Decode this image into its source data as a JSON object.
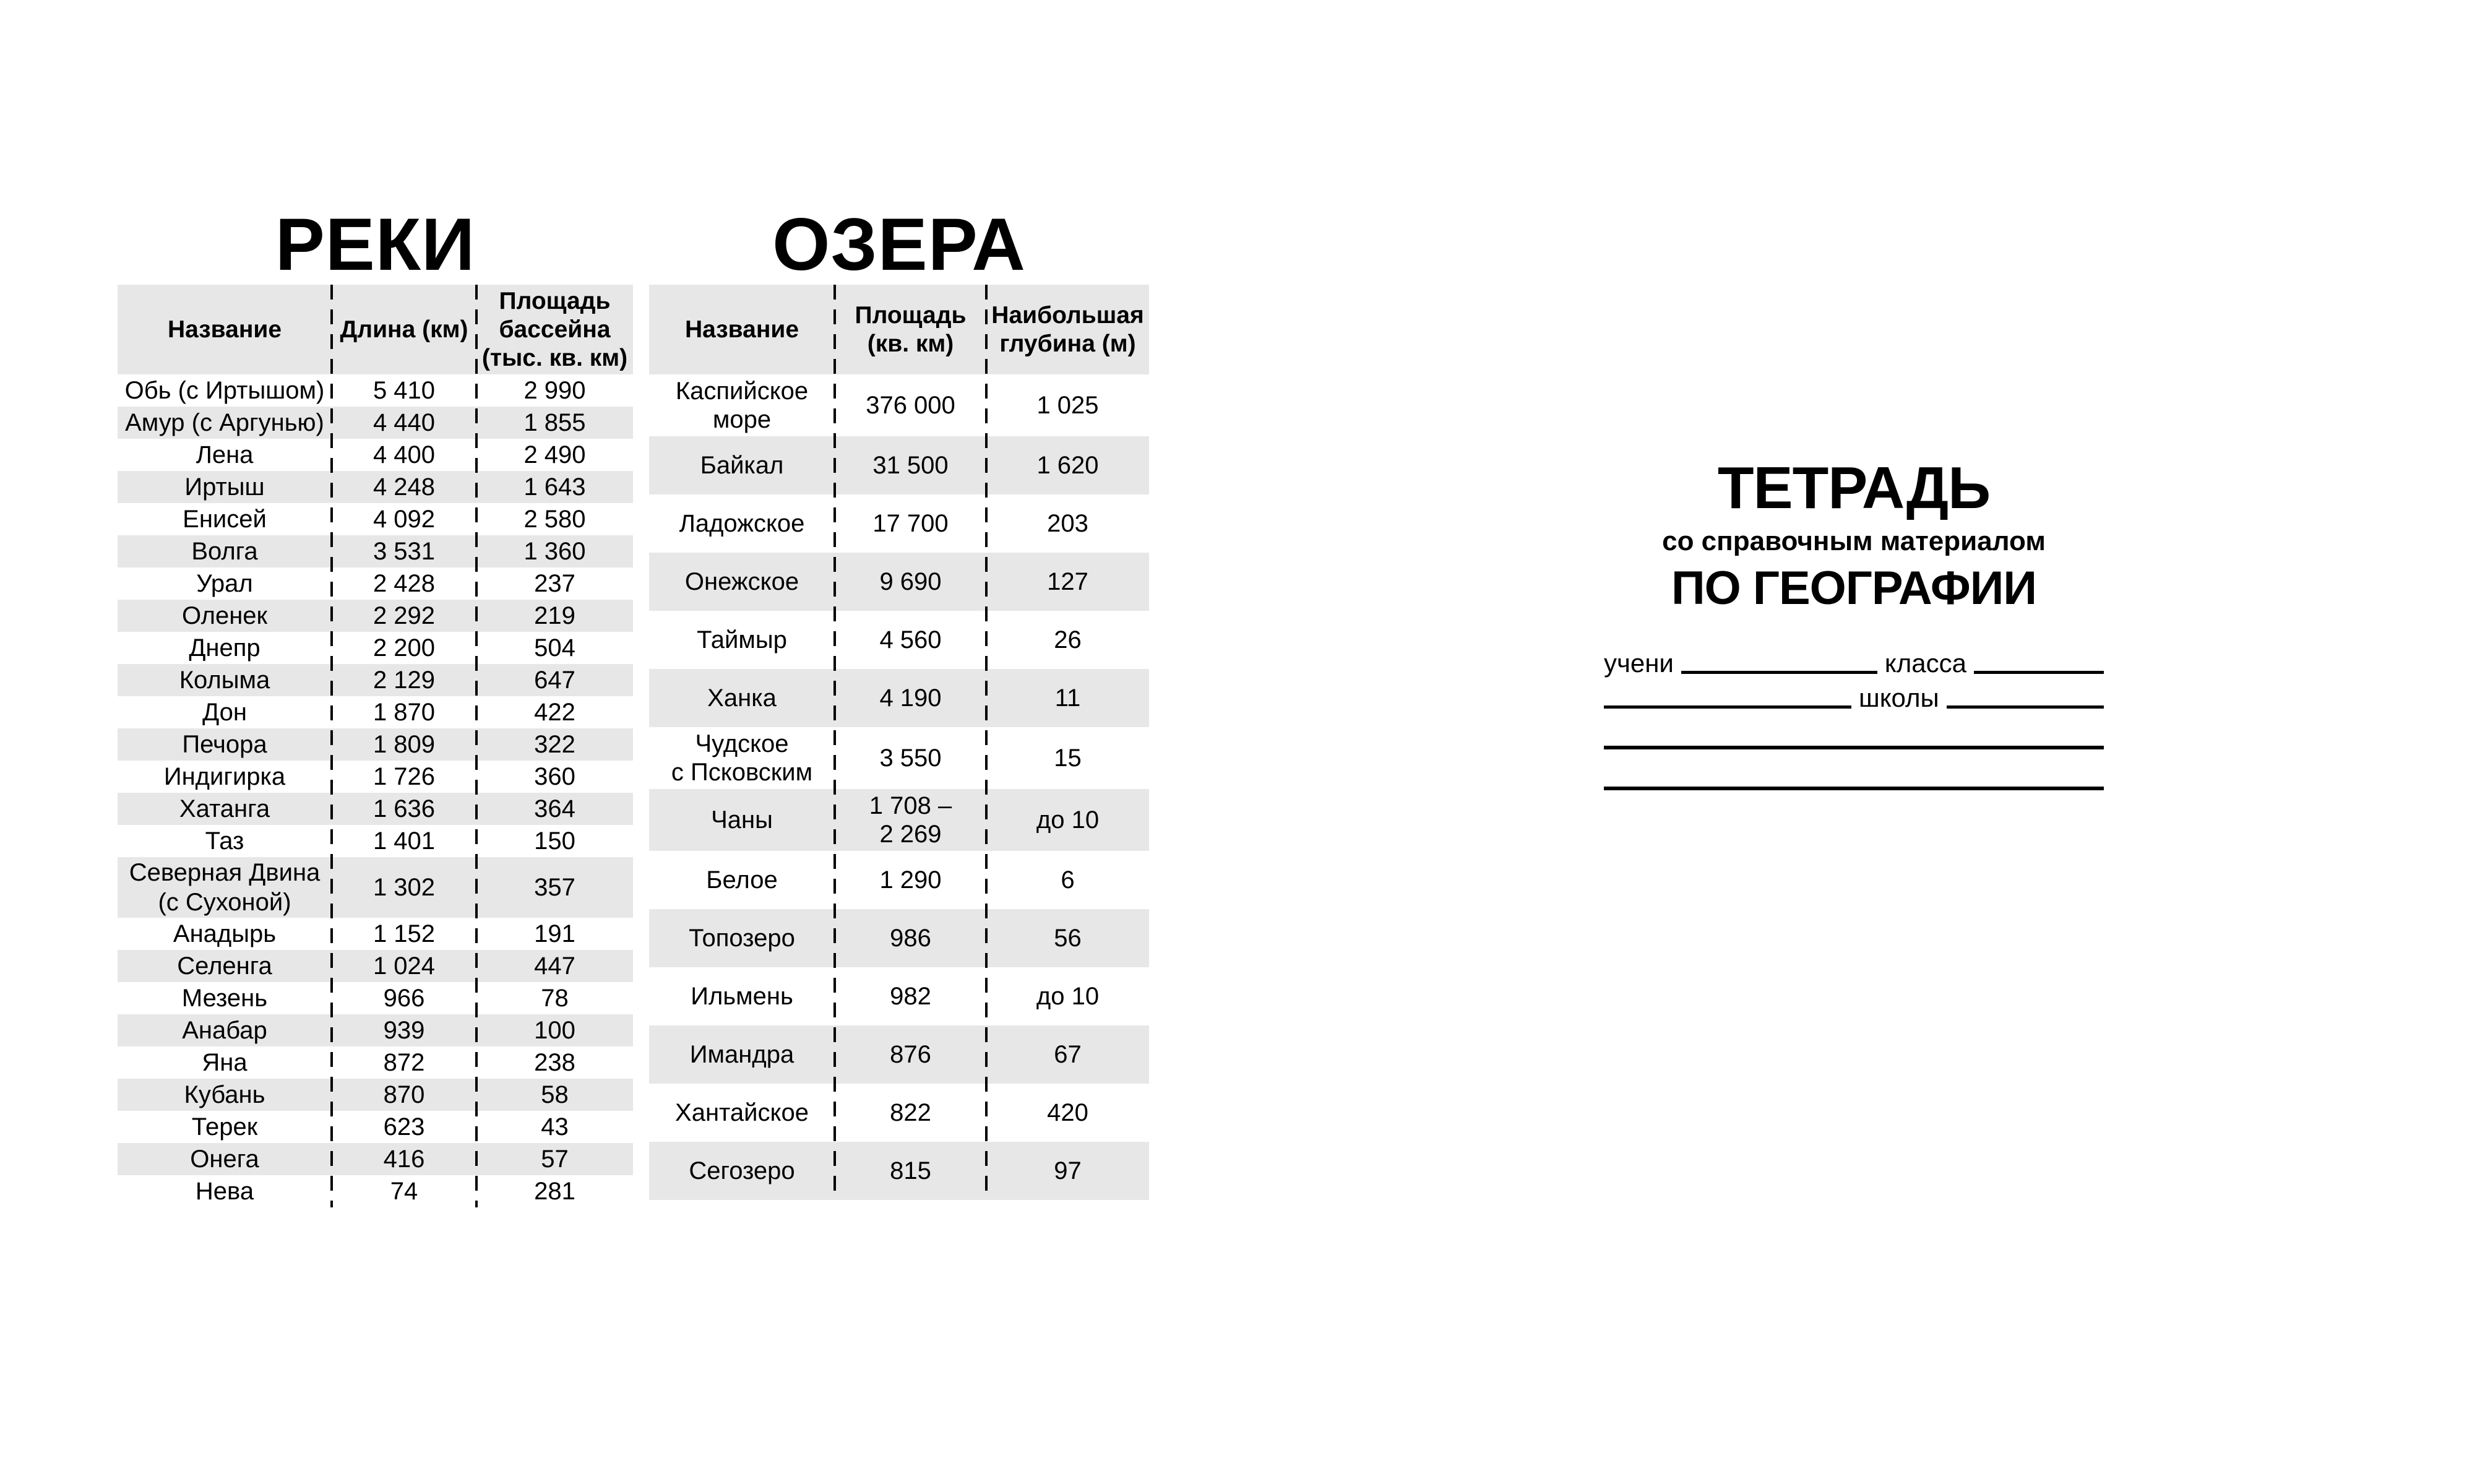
{
  "page": {
    "background": "#ffffff",
    "text_color": "#000000",
    "stripe_color": "#e7e7e7"
  },
  "rivers_table": {
    "title": "РЕКИ",
    "headers": [
      "Название",
      "Длина (км)",
      "Площадь бассейна (тыс. кв. км)"
    ],
    "rows": [
      [
        "Обь (с Иртышом)",
        "5 410",
        "2 990"
      ],
      [
        "Амур (с Аргунью)",
        "4 440",
        "1 855"
      ],
      [
        "Лена",
        "4 400",
        "2 490"
      ],
      [
        "Иртыш",
        "4 248",
        "1 643"
      ],
      [
        "Енисей",
        "4 092",
        "2 580"
      ],
      [
        "Волга",
        "3 531",
        "1 360"
      ],
      [
        "Урал",
        "2 428",
        "237"
      ],
      [
        "Оленек",
        "2 292",
        "219"
      ],
      [
        "Днепр",
        "2 200",
        "504"
      ],
      [
        "Колыма",
        "2 129",
        "647"
      ],
      [
        "Дон",
        "1 870",
        "422"
      ],
      [
        "Печора",
        "1 809",
        "322"
      ],
      [
        "Индигирка",
        "1 726",
        "360"
      ],
      [
        "Хатанга",
        "1 636",
        "364"
      ],
      [
        "Таз",
        "1 401",
        "150"
      ],
      [
        "Северная Двина (с Сухоной)",
        "1 302",
        "357"
      ],
      [
        "Анадырь",
        "1 152",
        "191"
      ],
      [
        "Селенга",
        "1 024",
        "447"
      ],
      [
        "Мезень",
        "966",
        "78"
      ],
      [
        "Анабар",
        "939",
        "100"
      ],
      [
        "Яна",
        "872",
        "238"
      ],
      [
        "Кубань",
        "870",
        "58"
      ],
      [
        "Терек",
        "623",
        "43"
      ],
      [
        "Онега",
        "416",
        "57"
      ],
      [
        "Нева",
        "74",
        "281"
      ]
    ]
  },
  "lakes_table": {
    "title": "ОЗЕРА",
    "headers": [
      "Название",
      "Площадь (кв. км)",
      "Наибольшая глубина (м)"
    ],
    "rows": [
      [
        "Каспийское море",
        "376 000",
        "1 025"
      ],
      [
        "Байкал",
        "31 500",
        "1 620"
      ],
      [
        "Ладожское",
        "17 700",
        "203"
      ],
      [
        "Онежское",
        "9 690",
        "127"
      ],
      [
        "Таймыр",
        "4 560",
        "26"
      ],
      [
        "Ханка",
        "4 190",
        "11"
      ],
      [
        "Чудское с Псковским",
        "3 550",
        "15"
      ],
      [
        "Чаны",
        "1 708 – 2 269",
        "до 10"
      ],
      [
        "Белое",
        "1 290",
        "6"
      ],
      [
        "Топозеро",
        "986",
        "56"
      ],
      [
        "Ильмень",
        "982",
        "до 10"
      ],
      [
        "Имандра",
        "876",
        "67"
      ],
      [
        "Хантайское",
        "822",
        "420"
      ],
      [
        "Сегозеро",
        "815",
        "97"
      ]
    ]
  },
  "cover": {
    "title": "ТЕТРАДЬ",
    "subtitle": "со справочным материалом",
    "subject": "ПО ГЕОГРАФИИ",
    "form": {
      "student_label": "учени",
      "class_label": "класса",
      "school_label": "школы"
    }
  }
}
